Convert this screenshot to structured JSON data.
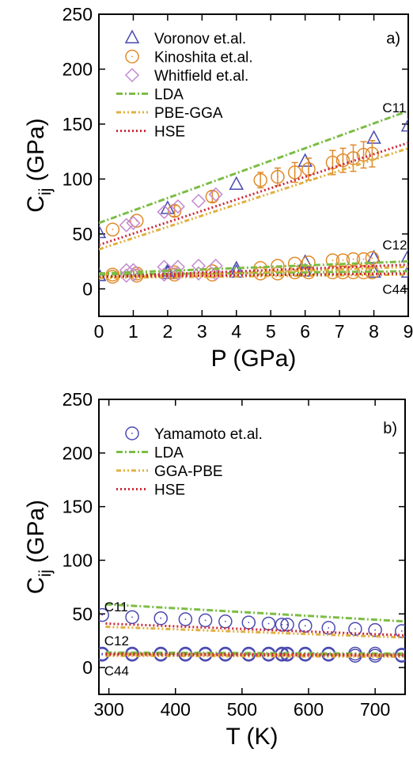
{
  "chart_data": [
    {
      "type": "scatter",
      "panel_label": "a)",
      "xlabel": "P (GPa)",
      "ylabel_main": "C",
      "ylabel_sub": "ij",
      "ylabel_unit": " (GPa)",
      "xlim": [
        0,
        9
      ],
      "ylim": [
        -25,
        250
      ],
      "xticks": [
        0,
        1,
        2,
        3,
        4,
        5,
        6,
        7,
        8,
        9
      ],
      "yticks": [
        0,
        50,
        100,
        150,
        200,
        250
      ],
      "grid": false,
      "legend_position": "top-left",
      "annotations": [
        {
          "text": "C11",
          "x": 8.25,
          "y": 165
        },
        {
          "text": "C12",
          "x": 8.25,
          "y": 40
        },
        {
          "text": "C44",
          "x": 8.25,
          "y": 0
        }
      ],
      "series": [
        {
          "name": "Voronov et.al.",
          "kind": "points",
          "marker": "triangle",
          "color": "#4a4ab0",
          "points": [
            [
              0,
              51
            ],
            [
              2,
              73
            ],
            [
              4,
              95
            ],
            [
              6,
              116
            ],
            [
              8,
              137
            ],
            [
              9,
              148
            ],
            [
              0,
              12
            ],
            [
              2,
              16
            ],
            [
              4,
              18
            ],
            [
              6,
              24
            ],
            [
              8,
              28
            ],
            [
              9,
              29
            ],
            [
              0,
              12
            ],
            [
              2,
              14
            ],
            [
              4,
              15
            ],
            [
              6,
              16
            ],
            [
              8,
              15
            ],
            [
              9,
              15
            ]
          ]
        },
        {
          "name": "Kinoshita et.al.",
          "kind": "points",
          "marker": "circle",
          "color": "#e08a2a",
          "points": [
            [
              0.4,
              54
            ],
            [
              1.1,
              62
            ],
            [
              2.2,
              71
            ],
            [
              3.3,
              84
            ],
            [
              4.7,
              99
            ],
            [
              5.2,
              102
            ],
            [
              5.7,
              106
            ],
            [
              6.1,
              109
            ],
            [
              6.8,
              115
            ],
            [
              7.1,
              117
            ],
            [
              7.4,
              119
            ],
            [
              7.7,
              122
            ],
            [
              7.95,
              123
            ],
            [
              0.4,
              13
            ],
            [
              1.1,
              14
            ],
            [
              2.2,
              15
            ],
            [
              3.3,
              16
            ],
            [
              4.7,
              19
            ],
            [
              5.2,
              21
            ],
            [
              5.7,
              23
            ],
            [
              6.1,
              24
            ],
            [
              6.8,
              26
            ],
            [
              7.1,
              26
            ],
            [
              7.4,
              27
            ],
            [
              7.7,
              27
            ],
            [
              7.95,
              28
            ],
            [
              0.4,
              11
            ],
            [
              1.1,
              12
            ],
            [
              2.2,
              13
            ],
            [
              3.3,
              13
            ],
            [
              4.7,
              14
            ],
            [
              5.2,
              14
            ],
            [
              5.7,
              15
            ],
            [
              6.1,
              15
            ],
            [
              6.8,
              15
            ],
            [
              7.1,
              15
            ],
            [
              7.4,
              15
            ],
            [
              7.7,
              15
            ],
            [
              7.95,
              15
            ]
          ],
          "errors": [
            [
              2.2,
              5
            ],
            [
              3.3,
              5
            ],
            [
              4.7,
              7
            ],
            [
              5.2,
              8
            ],
            [
              5.7,
              9
            ],
            [
              6.1,
              10
            ],
            [
              6.8,
              11
            ],
            [
              7.1,
              11
            ],
            [
              7.4,
              12
            ],
            [
              7.7,
              12
            ],
            [
              7.95,
              12
            ]
          ]
        },
        {
          "name": "Whitfield et.al.",
          "kind": "points",
          "marker": "diamond",
          "color": "#c48ad0",
          "points": [
            [
              0.8,
              58
            ],
            [
              1.0,
              60
            ],
            [
              1.9,
              70
            ],
            [
              2.3,
              75
            ],
            [
              2.9,
              80
            ],
            [
              3.4,
              86
            ],
            [
              0.8,
              17
            ],
            [
              1.0,
              17
            ],
            [
              1.9,
              20
            ],
            [
              2.3,
              20
            ],
            [
              2.9,
              21
            ],
            [
              3.4,
              21
            ],
            [
              0.8,
              12
            ],
            [
              1.0,
              13
            ],
            [
              1.9,
              13
            ],
            [
              2.3,
              14
            ],
            [
              2.9,
              14
            ],
            [
              3.4,
              14
            ]
          ]
        },
        {
          "name": "LDA",
          "kind": "line",
          "dash": "8 3 2 3",
          "color": "#7cbd44",
          "lines": [
            [
              [
                0,
                60
              ],
              [
                9,
                162
              ]
            ],
            [
              [
                0,
                14
              ],
              [
                9,
                25
              ]
            ],
            [
              [
                0,
                13
              ],
              [
                9,
                16
              ]
            ]
          ]
        },
        {
          "name": "PBE-GGA",
          "kind": "line",
          "dash": "6 3 2 3 2 3",
          "color": "#e0b040",
          "lines": [
            [
              [
                0,
                36
              ],
              [
                9,
                128
              ]
            ],
            [
              [
                0,
                10
              ],
              [
                9,
                20
              ]
            ],
            [
              [
                0,
                10
              ],
              [
                9,
                13
              ]
            ]
          ]
        },
        {
          "name": "HSE",
          "kind": "line",
          "dash": "2 3",
          "color": "#cc2a3a",
          "lines": [
            [
              [
                0,
                40
              ],
              [
                9,
                133
              ]
            ],
            [
              [
                0,
                11
              ],
              [
                9,
                22
              ]
            ],
            [
              [
                0,
                11
              ],
              [
                9,
                14
              ]
            ]
          ]
        }
      ]
    },
    {
      "type": "scatter",
      "panel_label": "b)",
      "xlabel": "T (K)",
      "ylabel_main": "C",
      "ylabel_sub": "ij",
      "ylabel_unit": " (GPa)",
      "xlim": [
        285,
        745
      ],
      "ylim": [
        -25,
        250
      ],
      "xticks": [
        300,
        400,
        500,
        600,
        700
      ],
      "yticks": [
        0,
        50,
        100,
        150,
        200,
        250
      ],
      "grid": false,
      "legend_position": "top-left",
      "annotations": [
        {
          "text": "C11",
          "x": 293,
          "y": 57
        },
        {
          "text": "C12",
          "x": 293,
          "y": 25
        },
        {
          "text": "C44",
          "x": 293,
          "y": -3
        }
      ],
      "series": [
        {
          "name": "Yamamoto et.al.",
          "kind": "points",
          "marker": "circle",
          "color": "#4a4ab0",
          "points": [
            [
              290,
              49
            ],
            [
              335,
              47
            ],
            [
              378,
              46
            ],
            [
              415,
              45
            ],
            [
              445,
              44
            ],
            [
              475,
              43
            ],
            [
              510,
              42
            ],
            [
              540,
              41
            ],
            [
              560,
              40
            ],
            [
              568,
              40
            ],
            [
              595,
              39
            ],
            [
              630,
              37
            ],
            [
              670,
              36
            ],
            [
              700,
              35
            ],
            [
              740,
              34
            ],
            [
              290,
              13
            ],
            [
              335,
              13
            ],
            [
              378,
              13
            ],
            [
              415,
              13
            ],
            [
              445,
              13
            ],
            [
              475,
              13
            ],
            [
              510,
              13
            ],
            [
              540,
              13
            ],
            [
              560,
              13
            ],
            [
              568,
              13
            ],
            [
              595,
              13
            ],
            [
              630,
              13
            ],
            [
              670,
              13
            ],
            [
              700,
              13
            ],
            [
              740,
              12
            ],
            [
              290,
              12
            ],
            [
              335,
              12
            ],
            [
              378,
              12
            ],
            [
              415,
              12
            ],
            [
              445,
              12
            ],
            [
              475,
              12
            ],
            [
              510,
              12
            ],
            [
              540,
              12
            ],
            [
              560,
              12
            ],
            [
              568,
              12
            ],
            [
              595,
              12
            ],
            [
              630,
              12
            ],
            [
              670,
              11
            ],
            [
              700,
              11
            ],
            [
              740,
              11
            ]
          ]
        },
        {
          "name": "LDA",
          "kind": "line",
          "dash": "8 3 2 3",
          "color": "#7cbd44",
          "lines": [
            [
              [
                295,
                59
              ],
              [
                745,
                43
              ]
            ],
            [
              [
                295,
                14
              ],
              [
                745,
                13
              ]
            ],
            [
              [
                295,
                13
              ],
              [
                745,
                12
              ]
            ]
          ]
        },
        {
          "name": "GGA-PBE",
          "kind": "line",
          "dash": "6 3 2 3 2 3",
          "color": "#e0b040",
          "lines": [
            [
              [
                295,
                38
              ],
              [
                745,
                28
              ]
            ],
            [
              [
                295,
                12
              ],
              [
                745,
                11
              ]
            ],
            [
              [
                295,
                11
              ],
              [
                745,
                10
              ]
            ]
          ]
        },
        {
          "name": "HSE",
          "kind": "line",
          "dash": "2 3",
          "color": "#cc2a3a",
          "lines": [
            [
              [
                295,
                41
              ],
              [
                745,
                30
              ]
            ],
            [
              [
                295,
                13
              ],
              [
                745,
                12
              ]
            ],
            [
              [
                295,
                12
              ],
              [
                745,
                11
              ]
            ]
          ]
        }
      ]
    }
  ]
}
